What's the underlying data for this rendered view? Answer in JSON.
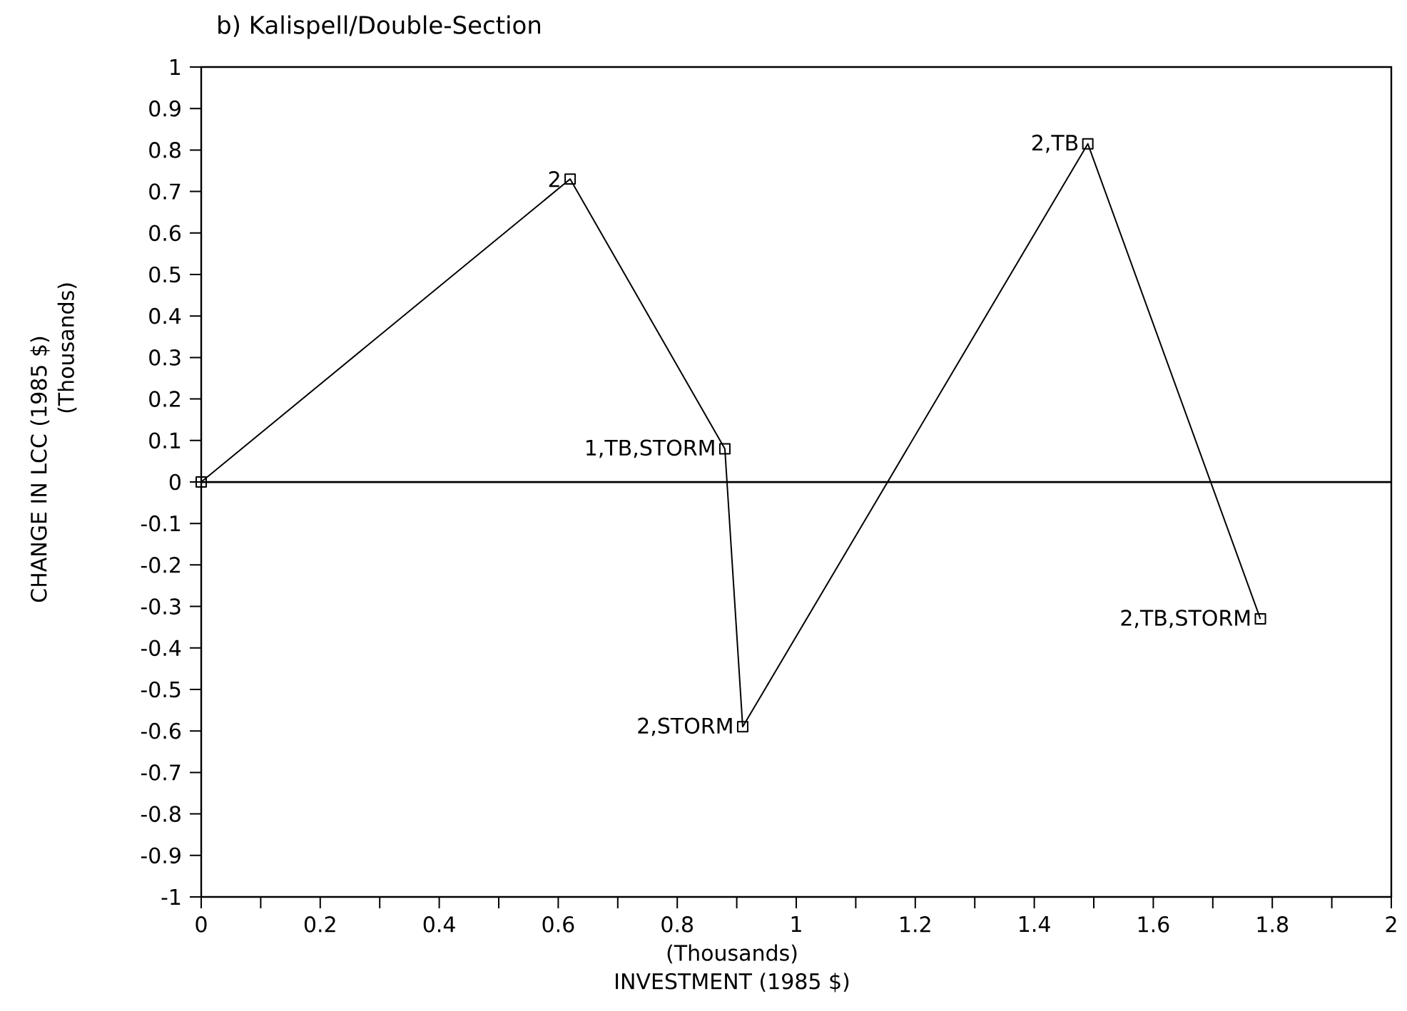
{
  "chart_data": {
    "type": "line",
    "title": "b)   Kalispell/Double-Section",
    "xlabel": "INVESTMENT (1985 $)",
    "ylabel": "CHANGE IN LCC (1985 $)",
    "x": [
      0,
      0.62,
      0.88,
      0.91,
      1.49,
      1.78
    ],
    "series": [
      {
        "color": "#000000",
        "values": [
          0,
          0.73,
          0.08,
          -0.59,
          0.815,
          -0.33
        ]
      }
    ],
    "marker": "square",
    "line_style": "solid",
    "xlim": [
      0,
      2
    ],
    "ylim": [
      -1,
      1
    ],
    "xticks": [
      0,
      {
        "value": 0.1,
        "label": null
      },
      0.2,
      {
        "value": 0.3,
        "label": null
      },
      0.4,
      {
        "value": 0.5,
        "label": null
      },
      0.6,
      {
        "value": 0.7,
        "label": null
      },
      0.8,
      {
        "value": 0.9,
        "label": null
      },
      1,
      {
        "value": 1.1,
        "label": null
      },
      1.2,
      {
        "value": 1.3,
        "label": null
      },
      1.4,
      {
        "value": 1.5,
        "label": null
      },
      1.6,
      {
        "value": 1.7,
        "label": null
      },
      1.8,
      {
        "value": 1.9,
        "label": null
      },
      2
    ],
    "yticks": [
      -1,
      -0.9,
      -0.8,
      -0.7,
      -0.6,
      -0.5,
      -0.4,
      -0.3,
      -0.2,
      -0.1,
      0,
      0.1,
      0.2,
      0.3,
      0.4,
      0.5,
      0.6,
      0.7,
      0.8,
      0.9,
      1
    ],
    "ref_lines": [
      {
        "axis": "y",
        "value": 0
      }
    ],
    "annotations": [
      {
        "text": "2",
        "x": 0.62,
        "y": 0.73
      },
      {
        "text": "1,TB,STORM",
        "x": 0.88,
        "y": 0.08
      },
      {
        "text": "2,STORM",
        "x": 0.91,
        "y": -0.59
      },
      {
        "text": "2,TB",
        "x": 1.49,
        "y": 0.815
      },
      {
        "text": "2,TB,STORM",
        "x": 1.78,
        "y": -0.33
      },
      "(Thousands)",
      "(Thousands)"
    ]
  }
}
